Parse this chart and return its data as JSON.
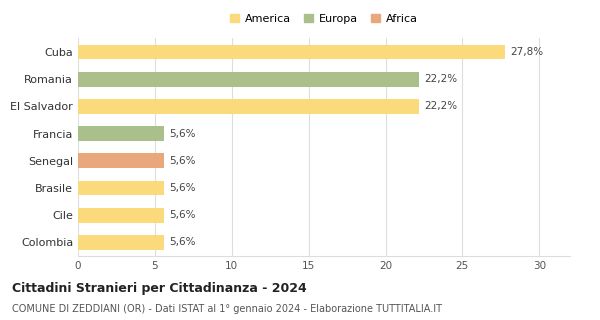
{
  "countries": [
    "Cuba",
    "Romania",
    "El Salvador",
    "Francia",
    "Senegal",
    "Brasile",
    "Cile",
    "Colombia"
  ],
  "values": [
    27.8,
    22.2,
    22.2,
    5.6,
    5.6,
    5.6,
    5.6,
    5.6
  ],
  "labels": [
    "27,8%",
    "22,2%",
    "22,2%",
    "5,6%",
    "5,6%",
    "5,6%",
    "5,6%",
    "5,6%"
  ],
  "colors": [
    "#FADA7A",
    "#AABF8A",
    "#FADA7A",
    "#AABF8A",
    "#E8A87C",
    "#FADA7A",
    "#FADA7A",
    "#FADA7A"
  ],
  "legend": [
    {
      "label": "America",
      "color": "#FADA7A"
    },
    {
      "label": "Europa",
      "color": "#AABF8A"
    },
    {
      "label": "Africa",
      "color": "#E8A87C"
    }
  ],
  "xlim": [
    0,
    32
  ],
  "xticks": [
    0,
    5,
    10,
    15,
    20,
    25,
    30
  ],
  "title": "Cittadini Stranieri per Cittadinanza - 2024",
  "subtitle": "COMUNE DI ZEDDIANI (OR) - Dati ISTAT al 1° gennaio 2024 - Elaborazione TUTTITALIA.IT",
  "title_fontsize": 9,
  "subtitle_fontsize": 7,
  "bar_height": 0.55,
  "background_color": "#ffffff",
  "grid_color": "#dddddd"
}
